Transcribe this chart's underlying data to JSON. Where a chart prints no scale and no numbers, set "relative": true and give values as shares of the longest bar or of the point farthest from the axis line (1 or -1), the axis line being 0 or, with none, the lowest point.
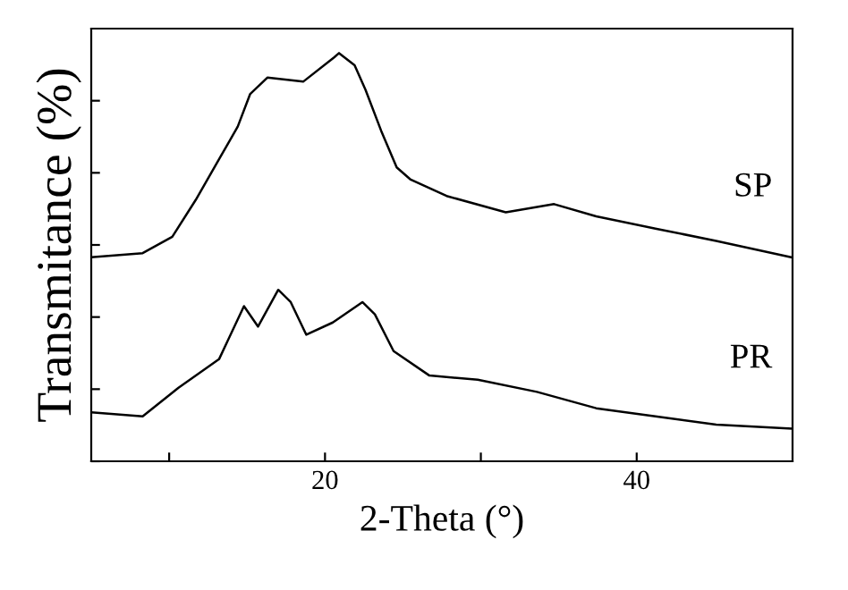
{
  "chart_data": {
    "type": "line",
    "xlabel": "2-Theta (°)",
    "ylabel": "Transmitance (%)",
    "relative": true,
    "tick_labels": "x",
    "grid": false,
    "legend": false,
    "xlim": [
      5,
      50
    ],
    "xticks": [
      {
        "value": 10,
        "label": null
      },
      20,
      {
        "value": 30,
        "label": null
      },
      40
    ],
    "series": [
      {
        "name": "SP",
        "color": "#000000",
        "x": [
          5,
          8.3,
          10.2,
          11.7,
          13.2,
          14.4,
          15.2,
          16.3,
          18.6,
          20.6,
          20.9,
          21.9,
          22.6,
          23.6,
          24.6,
          25.5,
          27.8,
          31.6,
          34.7,
          37.4,
          41.2,
          45.1,
          49.9
        ],
        "values": [
          0.5,
          0.51,
          0.55,
          0.64,
          0.74,
          0.82,
          0.9,
          0.94,
          0.93,
          0.99,
          1.0,
          0.97,
          0.91,
          0.81,
          0.72,
          0.69,
          0.65,
          0.61,
          0.63,
          0.6,
          0.57,
          0.54,
          0.5
        ]
      },
      {
        "name": "PR",
        "color": "#000000",
        "x": [
          5,
          8.3,
          10.6,
          13.2,
          14.8,
          15.7,
          17.0,
          17.8,
          18.8,
          20.5,
          22.4,
          23.2,
          24.4,
          26.7,
          29.8,
          33.6,
          37.4,
          41.2,
          45.1,
          49.9
        ],
        "values": [
          0.12,
          0.11,
          0.18,
          0.25,
          0.38,
          0.33,
          0.42,
          0.39,
          0.31,
          0.34,
          0.39,
          0.36,
          0.27,
          0.21,
          0.2,
          0.17,
          0.13,
          0.11,
          0.09,
          0.08
        ]
      }
    ]
  }
}
